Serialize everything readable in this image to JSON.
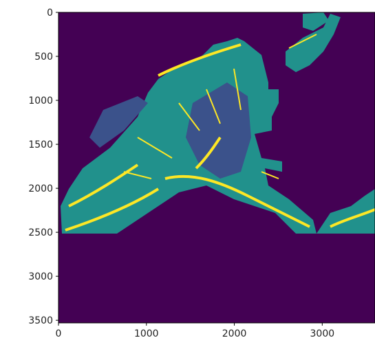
{
  "chart_data": {
    "type": "image",
    "xlim": [
      0,
      3600
    ],
    "ylim": [
      3530,
      0
    ],
    "xticks": [
      0,
      1000,
      2000,
      3000
    ],
    "yticks": [
      0,
      500,
      1000,
      1500,
      2000,
      2500,
      3000,
      3500
    ],
    "colormap": [
      "#440154",
      "#3b528b",
      "#21918c",
      "#5ec962",
      "#fde725"
    ]
  }
}
